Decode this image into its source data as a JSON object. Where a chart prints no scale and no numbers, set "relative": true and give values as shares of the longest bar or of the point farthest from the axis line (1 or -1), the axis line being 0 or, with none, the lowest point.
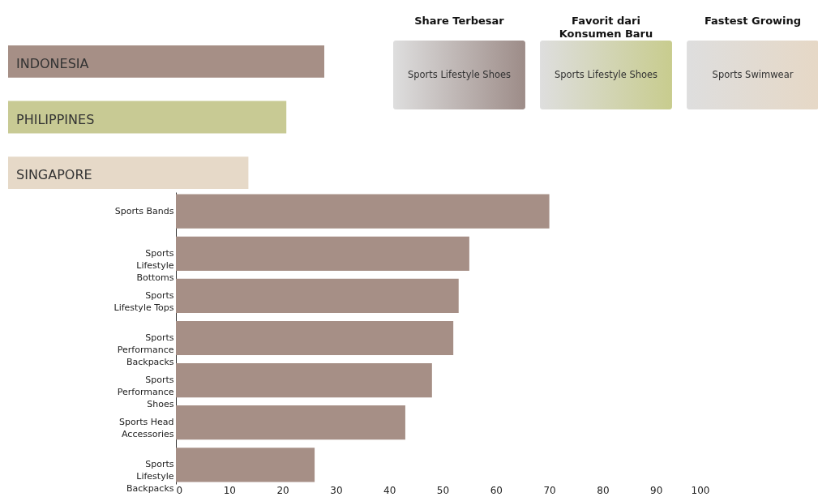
{
  "chart_data": [
    {
      "type": "bar",
      "orientation": "horizontal",
      "relative": true,
      "categories": [
        "INDONESIA",
        "PHILIPPINES",
        "SINGAPORE"
      ],
      "values": [
        1,
        0.88,
        0.76
      ],
      "colors": [
        "#a68f86",
        "#c8ca94",
        "#e6d9c8"
      ]
    },
    {
      "type": "other",
      "categories": [
        "Share Terbesar",
        "Favorit dari Konsumen Baru",
        "Fastest Growing"
      ],
      "annotations": [
        "Sports Lifestyle Shoes",
        "Sports Lifestyle Shoes",
        "Sports Swimwear"
      ],
      "colors": [
        "#9d8c88",
        "#c8cc8e",
        "#e6d8c6"
      ]
    },
    {
      "type": "bar",
      "orientation": "horizontal",
      "categories": [
        "Sports Bands",
        "Sports Lifestyle Bottoms",
        "Sports Lifestyle Tops",
        "Sports Performance Backpacks",
        "Sports Performance Shoes",
        "Sports Head Accessories",
        "Sports Lifestyle Backpacks"
      ],
      "values": [
        70,
        55,
        53,
        52,
        48,
        43,
        26
      ],
      "color": "#a68f86",
      "xlim": [
        0,
        100
      ],
      "xticks": [
        0,
        10,
        20,
        30,
        40,
        50,
        60,
        70,
        80,
        90,
        100
      ],
      "grid": false
    }
  ]
}
